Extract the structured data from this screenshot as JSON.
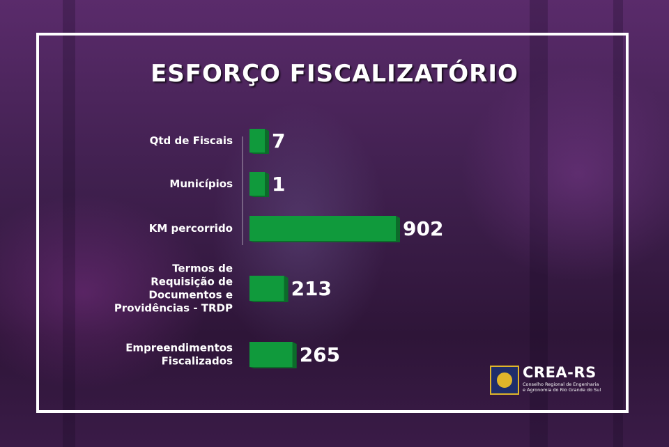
{
  "title": "ESFORÇO FISCALIZATÓRIO",
  "chart_data": {
    "type": "bar",
    "orientation": "horizontal",
    "title": "ESFORÇO FISCALIZATÓRIO",
    "categories": [
      [
        "Qtd de Fiscais"
      ],
      [
        "Municípios"
      ],
      [
        "KM percorrido"
      ],
      [
        "Termos de",
        "Requisição de",
        "Documentos e",
        "Providências - TRDP"
      ],
      [
        "Empreendimentos",
        "Fiscalizados"
      ]
    ],
    "values": [
      7,
      1,
      902,
      213,
      265
    ],
    "value_labels": [
      "7",
      "1",
      "902",
      "213",
      "265"
    ],
    "bar_color": "#109a3c",
    "xlim": [
      0,
      902
    ],
    "grid": false,
    "legend": "none"
  },
  "logo": {
    "name": "CREA-RS",
    "subtitle_line1": "Conselho Regional de Engenharia",
    "subtitle_line2": "e Agronomia do Rio Grande do Sul"
  },
  "colors": {
    "background": "#3d1a4c",
    "frame": "#ffffff",
    "bar": "#109a3c",
    "bar_side": "#0c6b2a",
    "text": "#ffffff"
  }
}
